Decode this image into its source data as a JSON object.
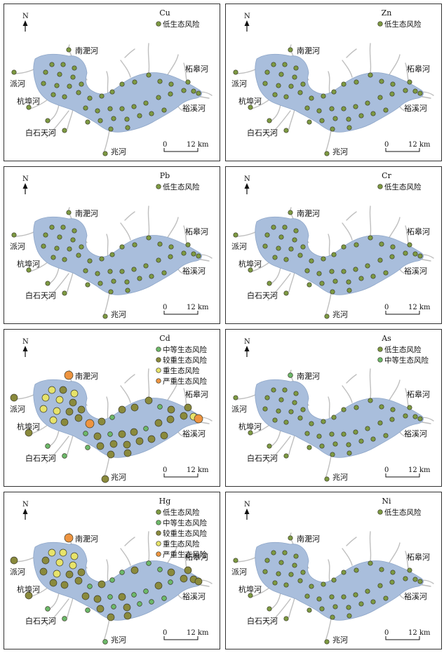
{
  "north_label": "N",
  "scale": {
    "start": "0",
    "end": "12 km"
  },
  "labels": {
    "nanfei": "南淝河",
    "pai": "派河",
    "zhegao": "柘皋河",
    "hangbu": "杭埠河",
    "yuxi": "裕溪河",
    "baishitian": "白石天河",
    "zhao": "兆河"
  },
  "risk_classes": {
    "low": {
      "label": "低生态风险",
      "color": "#7d9a42"
    },
    "medium": {
      "label": "中等生态风险",
      "color": "#6cb96a"
    },
    "considerable": {
      "label": "较重生态风险",
      "color": "#8a8a3c"
    },
    "high": {
      "label": "重生态风险",
      "color": "#e7e36a"
    },
    "serious": {
      "label": "严重生态风险",
      "color": "#ee9440"
    }
  },
  "panels": [
    {
      "element": "Cu",
      "legend": [
        "low"
      ]
    },
    {
      "element": "Zn",
      "legend": [
        "low"
      ]
    },
    {
      "element": "Pb",
      "legend": [
        "low"
      ]
    },
    {
      "element": "Cr",
      "legend": [
        "low"
      ]
    },
    {
      "element": "Cd",
      "legend": [
        "medium",
        "considerable",
        "high",
        "serious"
      ]
    },
    {
      "element": "As",
      "legend": [
        "low",
        "medium"
      ]
    },
    {
      "element": "Hg",
      "legend": [
        "low",
        "medium",
        "considerable",
        "high",
        "serious"
      ]
    },
    {
      "element": "Ni",
      "legend": [
        "low"
      ]
    }
  ]
}
